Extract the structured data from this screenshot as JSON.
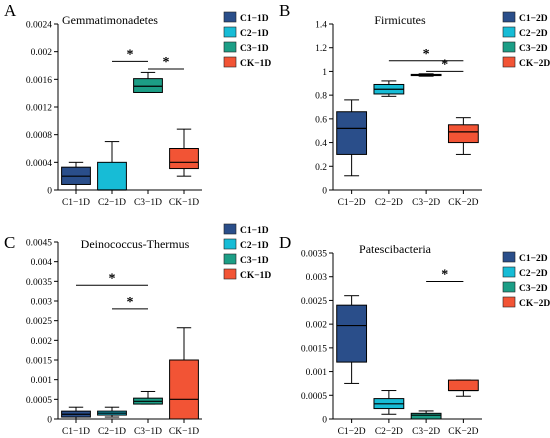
{
  "colors": {
    "C1": "#2a4e8a",
    "C2": "#17bcd6",
    "C3": "#1c9e86",
    "CK": "#f25435",
    "axis": "#000000"
  },
  "chart_data": [
    {
      "panel_label": "A",
      "type": "box",
      "title": "Gemmatimonadetes",
      "categories": [
        "C1−1D",
        "C2−1D",
        "C3−1D",
        "CK−1D"
      ],
      "ylim": [
        0,
        0.0024
      ],
      "yticks": [
        0,
        0.0004,
        0.0008,
        0.0012,
        0.0016,
        0.002,
        0.0024
      ],
      "ytick_labels": [
        "0",
        "0.0004",
        "0.0008",
        "0.0012",
        "0.0016",
        "0.002",
        "0.0024"
      ],
      "boxes": [
        {
          "min": 0.0,
          "q1": 8e-05,
          "median": 0.0002,
          "q3": 0.00033,
          "max": 0.0004
        },
        {
          "min": 0.0,
          "q1": 0.0,
          "median": 0.0,
          "q3": 0.0004,
          "max": 0.0007
        },
        {
          "min": 0.00141,
          "q1": 0.00141,
          "median": 0.0015,
          "q3": 0.00161,
          "max": 0.0017
        },
        {
          "min": 0.0002,
          "q1": 0.00031,
          "median": 0.0004,
          "q3": 0.0006,
          "max": 0.00088
        }
      ],
      "significance": [
        {
          "from": 1,
          "to": 2,
          "y": 0.00186,
          "label": "*"
        },
        {
          "from": 2,
          "to": 3,
          "y": 0.00175,
          "label": "*"
        }
      ],
      "legend": [
        "C1−1D",
        "C2−1D",
        "C3−1D",
        "CK−1D"
      ]
    },
    {
      "panel_label": "B",
      "type": "box",
      "title": "Firmicutes",
      "categories": [
        "C1−2D",
        "C2−2D",
        "C3−2D",
        "CK−2D"
      ],
      "ylim": [
        0,
        1.4
      ],
      "yticks": [
        0,
        0.2,
        0.4,
        0.6,
        0.8,
        1,
        1.2,
        1.4
      ],
      "ytick_labels": [
        "0",
        "0.2",
        "0.4",
        "0.6",
        "0.8",
        "1",
        "1.2",
        "1.4"
      ],
      "boxes": [
        {
          "min": 0.12,
          "q1": 0.3,
          "median": 0.52,
          "q3": 0.66,
          "max": 0.76
        },
        {
          "min": 0.79,
          "q1": 0.81,
          "median": 0.85,
          "q3": 0.89,
          "max": 0.92
        },
        {
          "min": 0.96,
          "q1": 0.965,
          "median": 0.97,
          "q3": 0.975,
          "max": 0.98
        },
        {
          "min": 0.3,
          "q1": 0.4,
          "median": 0.49,
          "q3": 0.55,
          "max": 0.61
        }
      ],
      "significance": [
        {
          "from": 1,
          "to": 3,
          "y": 1.09,
          "label": "*"
        },
        {
          "from": 2,
          "to": 3,
          "y": 1.0,
          "label": "*"
        }
      ],
      "legend": [
        "C1−2D",
        "C2−2D",
        "C3−2D",
        "CK−2D"
      ]
    },
    {
      "panel_label": "C",
      "type": "box",
      "title": "Deinococcus-Thermus",
      "categories": [
        "C1−1D",
        "C2−1D",
        "C3−1D",
        "CK−1D"
      ],
      "ylim": [
        0,
        0.0045
      ],
      "yticks": [
        0,
        0.0005,
        0.001,
        0.0015,
        0.002,
        0.0025,
        0.003,
        0.0035,
        0.004,
        0.0045
      ],
      "ytick_labels": [
        "0",
        "0.0005",
        "0.001",
        "0.0015",
        "0.002",
        "0.0025",
        "0.003",
        "0.0035",
        "0.004",
        "0.0045"
      ],
      "boxes": [
        {
          "min": 0.0,
          "q1": 5e-05,
          "median": 0.00012,
          "q3": 0.0002,
          "max": 0.0003
        },
        {
          "min": 5e-05,
          "q1": 0.0001,
          "median": 0.00015,
          "q3": 0.0002,
          "max": 0.0003
        },
        {
          "min": 0.00038,
          "q1": 0.00038,
          "median": 0.00045,
          "q3": 0.00053,
          "max": 0.0007
        },
        {
          "min": 0.0,
          "q1": 0.0,
          "median": 0.0005,
          "q3": 0.0015,
          "max": 0.00232
        }
      ],
      "significance": [
        {
          "from": 0,
          "to": 2,
          "y": 0.0034,
          "label": "*"
        },
        {
          "from": 1,
          "to": 2,
          "y": 0.0028,
          "label": "*"
        }
      ],
      "legend": [
        "C1−1D",
        "C2−1D",
        "C3−1D",
        "CK−1D"
      ]
    },
    {
      "panel_label": "D",
      "type": "box",
      "title": "Patescibacteria",
      "categories": [
        "C1−2D",
        "C2−2D",
        "C3−2D",
        "CK−2D"
      ],
      "ylim": [
        0,
        0.0035
      ],
      "yticks": [
        0,
        0.0005,
        0.001,
        0.0015,
        0.002,
        0.0025,
        0.003,
        0.0035
      ],
      "ytick_labels": [
        "0",
        "0.0005",
        "0.001",
        "0.0015",
        "0.002",
        "0.0025",
        "0.003",
        "0.0035"
      ],
      "boxes": [
        {
          "min": 0.00075,
          "q1": 0.0012,
          "median": 0.00197,
          "q3": 0.0024,
          "max": 0.0026
        },
        {
          "min": 0.0001,
          "q1": 0.00022,
          "median": 0.00032,
          "q3": 0.00043,
          "max": 0.0006
        },
        {
          "min": 0.0,
          "q1": 0.0,
          "median": 8e-05,
          "q3": 0.00012,
          "max": 0.00017
        },
        {
          "min": 0.00048,
          "q1": 0.0006,
          "median": 0.0006,
          "q3": 0.00082,
          "max": 0.00082
        }
      ],
      "significance": [
        {
          "from": 2,
          "to": 3,
          "y": 0.0029,
          "label": "*"
        }
      ],
      "legend": [
        "C1−2D",
        "C2−2D",
        "C3−2D",
        "CK−2D"
      ]
    }
  ]
}
